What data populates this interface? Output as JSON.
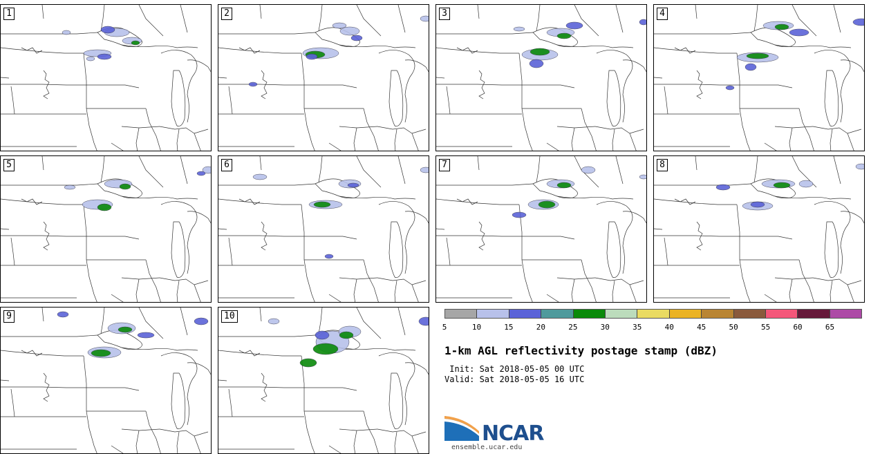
{
  "panels": [
    {
      "label": "1"
    },
    {
      "label": "2"
    },
    {
      "label": "3"
    },
    {
      "label": "4"
    },
    {
      "label": "5"
    },
    {
      "label": "6"
    },
    {
      "label": "7"
    },
    {
      "label": "8"
    },
    {
      "label": "9"
    },
    {
      "label": "10"
    }
  ],
  "colorbar": {
    "colors": [
      "#a6a6a6",
      "#b8c1ea",
      "#5b63d8",
      "#4f9a9c",
      "#0a8a0a",
      "#bcdcbc",
      "#eadb62",
      "#ebb324",
      "#b98533",
      "#8a5a3c",
      "#f4577a",
      "#66193a",
      "#ad4aa6"
    ],
    "ticks": [
      "5",
      "10",
      "15",
      "20",
      "25",
      "30",
      "35",
      "40",
      "45",
      "50",
      "55",
      "60",
      "65"
    ]
  },
  "title": "1-km AGL reflectivity postage stamp (dBZ)",
  "init": " Init: Sat 2018-05-05 00 UTC",
  "valid": "Valid: Sat 2018-05-05 16 UTC",
  "logo": {
    "text": "NCAR",
    "url": "ensemble.ucar.edu"
  }
}
